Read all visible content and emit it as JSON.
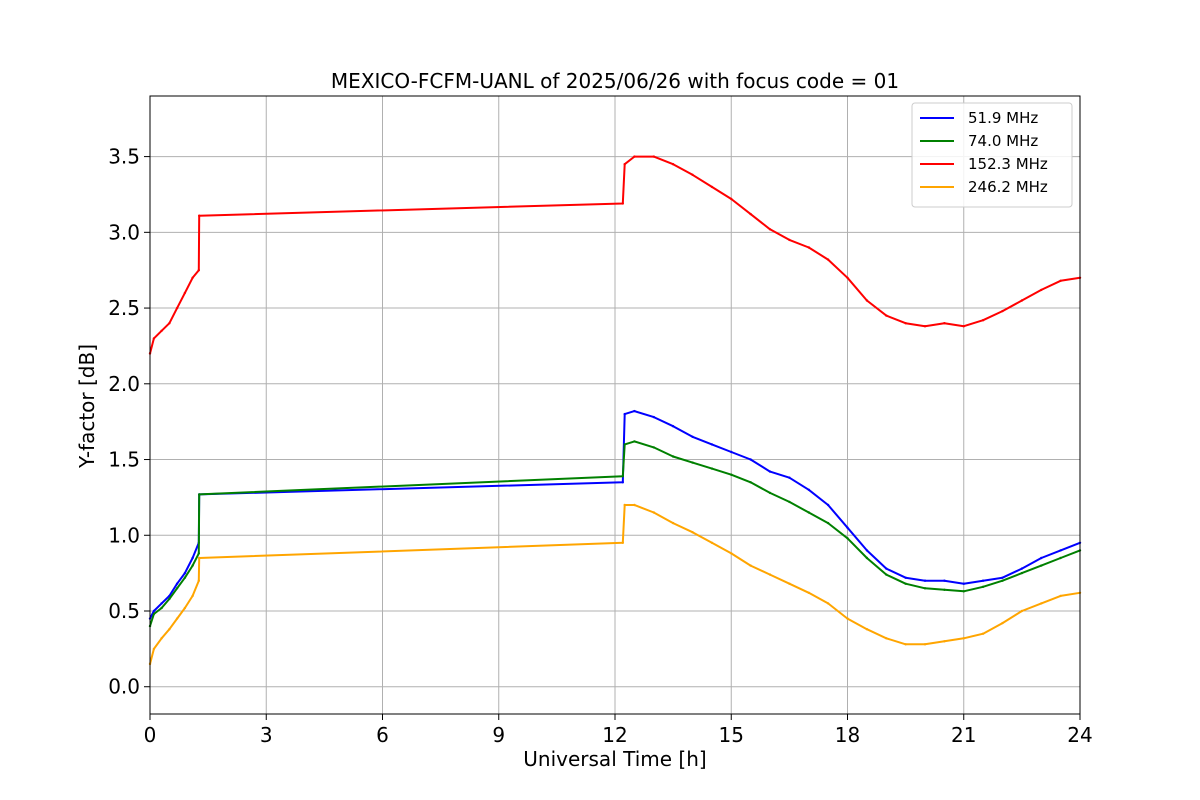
{
  "chart_data": {
    "type": "line",
    "title": "MEXICO-FCFM-UANL of 2025/06/26 with focus code = 01",
    "xlabel": "Universal Time [h]",
    "ylabel": "Y-factor [dB]",
    "xlim": [
      0,
      24
    ],
    "ylim": [
      -0.18,
      3.9
    ],
    "xticks": [
      0,
      3,
      6,
      9,
      12,
      15,
      18,
      21,
      24
    ],
    "xtick_labels": [
      "0",
      "3",
      "6",
      "9",
      "12",
      "15",
      "18",
      "21",
      "24"
    ],
    "yticks": [
      0.0,
      0.5,
      1.0,
      1.5,
      2.0,
      2.5,
      3.0,
      3.5
    ],
    "ytick_labels": [
      "0.0",
      "0.5",
      "1.0",
      "1.5",
      "2.0",
      "2.5",
      "3.0",
      "3.5"
    ],
    "grid": true,
    "legend_position": "top-right",
    "series": [
      {
        "name": "51.9 MHz",
        "color": "#0000ff",
        "x": [
          0.0,
          0.1,
          0.3,
          0.5,
          0.7,
          0.9,
          1.1,
          1.26,
          1.27,
          12.2,
          12.25,
          12.5,
          13.0,
          13.5,
          14.0,
          14.5,
          15.0,
          15.5,
          16.0,
          16.5,
          17.0,
          17.5,
          18.0,
          18.5,
          19.0,
          19.5,
          20.0,
          20.5,
          21.0,
          21.5,
          22.0,
          22.5,
          23.0,
          23.5,
          24.0
        ],
        "y": [
          0.45,
          0.5,
          0.55,
          0.6,
          0.68,
          0.75,
          0.85,
          0.95,
          1.27,
          1.35,
          1.8,
          1.82,
          1.78,
          1.72,
          1.65,
          1.6,
          1.55,
          1.5,
          1.42,
          1.38,
          1.3,
          1.2,
          1.05,
          0.9,
          0.78,
          0.72,
          0.7,
          0.7,
          0.68,
          0.7,
          0.72,
          0.78,
          0.85,
          0.9,
          0.95
        ]
      },
      {
        "name": "74.0 MHz",
        "color": "#008000",
        "x": [
          0.0,
          0.1,
          0.3,
          0.5,
          0.7,
          0.9,
          1.1,
          1.26,
          1.27,
          12.2,
          12.25,
          12.5,
          13.0,
          13.5,
          14.0,
          14.5,
          15.0,
          15.5,
          16.0,
          16.5,
          17.0,
          17.5,
          18.0,
          18.5,
          19.0,
          19.5,
          20.0,
          20.5,
          21.0,
          21.5,
          22.0,
          22.5,
          23.0,
          23.5,
          24.0
        ],
        "y": [
          0.4,
          0.48,
          0.52,
          0.58,
          0.65,
          0.72,
          0.8,
          0.88,
          1.27,
          1.39,
          1.6,
          1.62,
          1.58,
          1.52,
          1.48,
          1.44,
          1.4,
          1.35,
          1.28,
          1.22,
          1.15,
          1.08,
          0.98,
          0.85,
          0.74,
          0.68,
          0.65,
          0.64,
          0.63,
          0.66,
          0.7,
          0.75,
          0.8,
          0.85,
          0.9
        ]
      },
      {
        "name": "152.3 MHz",
        "color": "#ff0000",
        "x": [
          0.0,
          0.1,
          0.3,
          0.5,
          0.7,
          0.9,
          1.1,
          1.26,
          1.27,
          12.2,
          12.25,
          12.5,
          13.0,
          13.5,
          14.0,
          14.5,
          15.0,
          15.5,
          16.0,
          16.5,
          17.0,
          17.5,
          18.0,
          18.5,
          19.0,
          19.5,
          20.0,
          20.5,
          21.0,
          21.5,
          22.0,
          22.5,
          23.0,
          23.5,
          24.0
        ],
        "y": [
          2.2,
          2.3,
          2.35,
          2.4,
          2.5,
          2.6,
          2.7,
          2.75,
          3.11,
          3.19,
          3.45,
          3.5,
          3.5,
          3.45,
          3.38,
          3.3,
          3.22,
          3.12,
          3.02,
          2.95,
          2.9,
          2.82,
          2.7,
          2.55,
          2.45,
          2.4,
          2.38,
          2.4,
          2.38,
          2.42,
          2.48,
          2.55,
          2.62,
          2.68,
          2.7
        ]
      },
      {
        "name": "246.2 MHz",
        "color": "#ffa500",
        "x": [
          0.0,
          0.1,
          0.3,
          0.5,
          0.7,
          0.9,
          1.1,
          1.26,
          1.27,
          12.2,
          12.25,
          12.5,
          13.0,
          13.5,
          14.0,
          14.5,
          15.0,
          15.5,
          16.0,
          16.5,
          17.0,
          17.5,
          18.0,
          18.5,
          19.0,
          19.5,
          20.0,
          20.5,
          21.0,
          21.5,
          22.0,
          22.5,
          23.0,
          23.5,
          24.0
        ],
        "y": [
          0.15,
          0.25,
          0.32,
          0.38,
          0.45,
          0.52,
          0.6,
          0.7,
          0.85,
          0.95,
          1.2,
          1.2,
          1.15,
          1.08,
          1.02,
          0.95,
          0.88,
          0.8,
          0.74,
          0.68,
          0.62,
          0.55,
          0.45,
          0.38,
          0.32,
          0.28,
          0.28,
          0.3,
          0.32,
          0.35,
          0.42,
          0.5,
          0.55,
          0.6,
          0.62
        ]
      }
    ]
  }
}
